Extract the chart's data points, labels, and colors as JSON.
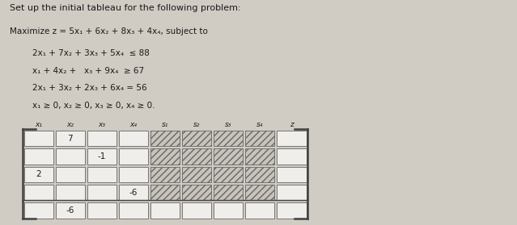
{
  "title": "Set up the initial tableau for the following problem:",
  "maximize_line": "Maximize z = 5x₁ + 6x₂ + 8x₃ + 4x₄, subject to",
  "constraint_lines": [
    "2x₁ + 7x₂ + 3x₃ + 5x₄  ≤ 88",
    "x₁ + 4x₂ +   x₃ + 9x₄  ≥ 67",
    "2x₁ + 3x₂ + 2x₃ + 6x₄ = 56",
    "x₁ ≥ 0, x₂ ≥ 0, x₃ ≥ 0, x₄ ≥ 0."
  ],
  "col_headers": [
    "x₁",
    "x₂",
    "x₃",
    "x₄",
    "s₁",
    "s₂",
    "s₃",
    "s₄",
    "z"
  ],
  "n_rows": 5,
  "n_cols": 9,
  "shown_values": {
    "0,1": "7",
    "1,2": "-1",
    "2,0": "2",
    "3,3": "-6",
    "4,1": "-6"
  },
  "hatch_cols_rows": [
    [
      4,
      0
    ],
    [
      4,
      1
    ],
    [
      4,
      2
    ],
    [
      4,
      3
    ],
    [
      5,
      0
    ],
    [
      5,
      1
    ],
    [
      5,
      2
    ],
    [
      5,
      3
    ],
    [
      6,
      0
    ],
    [
      6,
      1
    ],
    [
      6,
      2
    ],
    [
      6,
      3
    ],
    [
      7,
      0
    ],
    [
      7,
      1
    ],
    [
      7,
      2
    ],
    [
      7,
      3
    ]
  ],
  "bg_color": "#d0ccc4",
  "cell_white": "#f0eeeb",
  "cell_hatch": "#c8c4bc",
  "border_color": "#666666",
  "text_color": "#1a1a1a",
  "separator_row": 4
}
